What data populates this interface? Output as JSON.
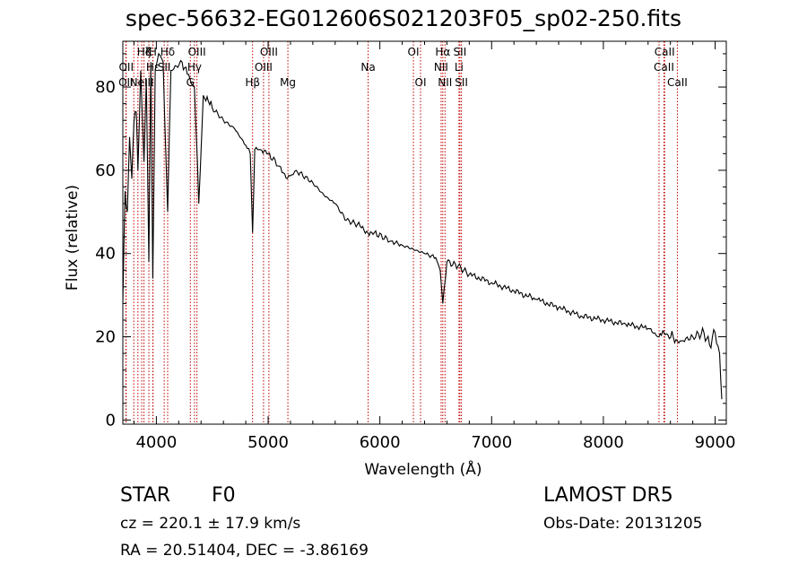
{
  "chart_data": {
    "type": "line",
    "title": "spec-56632-EG012606S021203F05_sp02-250.fits",
    "xlabel": "Wavelength (Å)",
    "ylabel": "Flux (relative)",
    "xlim": [
      3700,
      9100
    ],
    "ylim": [
      -1,
      91
    ],
    "xticks": [
      4000,
      5000,
      6000,
      7000,
      8000,
      9000
    ],
    "yticks": [
      0,
      20,
      40,
      60,
      80
    ],
    "grid": false,
    "series": [
      {
        "x": [
          3700,
          3720,
          3740,
          3760,
          3780,
          3800,
          3820,
          3835,
          3860,
          3889,
          3910,
          3933,
          3950,
          3968,
          3990,
          4020,
          4060,
          4101,
          4130,
          4180,
          4230,
          4300,
          4340,
          4380,
          4420,
          4500,
          4600,
          4700,
          4800,
          4840,
          4861,
          4880,
          4920,
          5000,
          5100,
          5172,
          5250,
          5400,
          5500,
          5600,
          5700,
          5800,
          5893,
          5950,
          6100,
          6200,
          6300,
          6400,
          6500,
          6540,
          6563,
          6600,
          6700,
          6800,
          7000,
          7200,
          7400,
          7600,
          7800,
          8000,
          8200,
          8400,
          8498,
          8542,
          8662,
          8700,
          8800,
          8900,
          8950,
          9000,
          9040,
          9060
        ],
        "y": [
          28,
          55,
          50,
          68,
          58,
          72,
          74,
          60,
          84,
          62,
          82,
          38,
          86,
          34,
          84,
          88,
          86,
          50,
          84,
          85,
          86,
          82,
          80,
          52,
          78,
          75,
          72,
          70,
          66,
          64,
          45,
          65,
          65,
          64,
          61,
          58,
          60,
          57,
          54,
          52,
          48,
          47,
          45,
          45,
          43,
          42,
          41,
          40,
          39,
          36,
          28,
          38,
          37,
          35,
          33,
          31,
          29,
          27,
          25,
          24,
          23,
          22,
          20,
          21,
          19,
          19,
          20,
          21,
          18,
          21,
          16,
          5
        ]
      }
    ],
    "lines": [
      {
        "x": 3727,
        "label": "OII",
        "row": 3
      },
      {
        "x": 3730,
        "label": "OII",
        "row": 2
      },
      {
        "x": 3798,
        "label": "",
        "row": 0
      },
      {
        "x": 3835,
        "label": "",
        "row": 0
      },
      {
        "x": 3869,
        "label": "NeIII",
        "row": 3
      },
      {
        "x": 3889,
        "label": "Hζ",
        "row": 1
      },
      {
        "x": 3933,
        "label": "K",
        "row": 1
      },
      {
        "x": 3968,
        "label": "H",
        "row": 1
      },
      {
        "x": 3970,
        "label": "Hε",
        "row": 2
      },
      {
        "x": 4070,
        "label": "SII",
        "row": 2
      },
      {
        "x": 4101,
        "label": "Hδ",
        "row": 1
      },
      {
        "x": 4304,
        "label": "G",
        "row": 3
      },
      {
        "x": 4341,
        "label": "Hγ",
        "row": 2
      },
      {
        "x": 4363,
        "label": "OIII",
        "row": 1
      },
      {
        "x": 4861,
        "label": "Hβ",
        "row": 3
      },
      {
        "x": 4959,
        "label": "OIII",
        "row": 2
      },
      {
        "x": 5007,
        "label": "OIII",
        "row": 1
      },
      {
        "x": 5177,
        "label": "Mg",
        "row": 3
      },
      {
        "x": 5895,
        "label": "Na",
        "row": 2
      },
      {
        "x": 6300,
        "label": "OI",
        "row": 1
      },
      {
        "x": 6364,
        "label": "OI",
        "row": 3
      },
      {
        "x": 6548,
        "label": "NII",
        "row": 2
      },
      {
        "x": 6563,
        "label": "Hα",
        "row": 1
      },
      {
        "x": 6583,
        "label": "NII",
        "row": 3
      },
      {
        "x": 6708,
        "label": "Li",
        "row": 2
      },
      {
        "x": 6716,
        "label": "SII",
        "row": 1
      },
      {
        "x": 6730,
        "label": "SII",
        "row": 3
      },
      {
        "x": 8498,
        "label": "",
        "row": 0
      },
      {
        "x": 8542,
        "label": "CaII",
        "row": 2
      },
      {
        "x": 8662,
        "label": "CaII",
        "row": 3
      },
      {
        "x": 8548,
        "label": "CaII",
        "row": 1
      }
    ]
  },
  "footer": {
    "class_label": "STAR",
    "subclass": "F0",
    "survey": "LAMOST  DR5",
    "cz": "cz = 220.1 ± 17.9 km/s",
    "obs_date": "Obs-Date: 20131205",
    "coords": "RA =  20.51404, DEC =  -3.86169"
  }
}
